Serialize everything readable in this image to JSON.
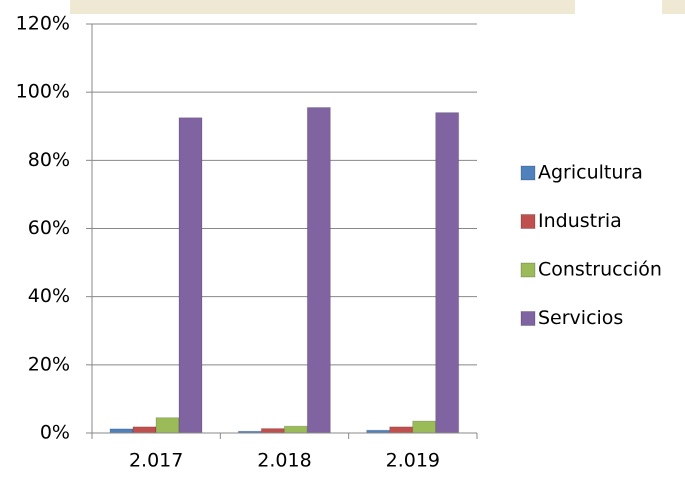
{
  "chart_data": {
    "type": "bar",
    "categories": [
      "2.017",
      "2.018",
      "2.019"
    ],
    "series": [
      {
        "name": "Agricultura",
        "color": "#4f81bd",
        "values": [
          1.2,
          0.5,
          0.8
        ]
      },
      {
        "name": "Industria",
        "color": "#c0504d",
        "values": [
          1.8,
          1.3,
          1.8
        ]
      },
      {
        "name": "Construcción",
        "color": "#9bbb59",
        "values": [
          4.5,
          2,
          3.5
        ]
      },
      {
        "name": "Servicios",
        "color": "#8064a2",
        "values": [
          92.5,
          95.5,
          94
        ]
      }
    ],
    "ylim": [
      0,
      120
    ],
    "yticks": [
      {
        "value": 0,
        "label": "0%"
      },
      {
        "value": 20,
        "label": "20%"
      },
      {
        "value": 40,
        "label": "40%"
      },
      {
        "value": 60,
        "label": "60%"
      },
      {
        "value": 80,
        "label": "80%"
      },
      {
        "value": 100,
        "label": "100%"
      },
      {
        "value": 120,
        "label": "120%"
      }
    ],
    "grid": true,
    "legend": "right"
  }
}
